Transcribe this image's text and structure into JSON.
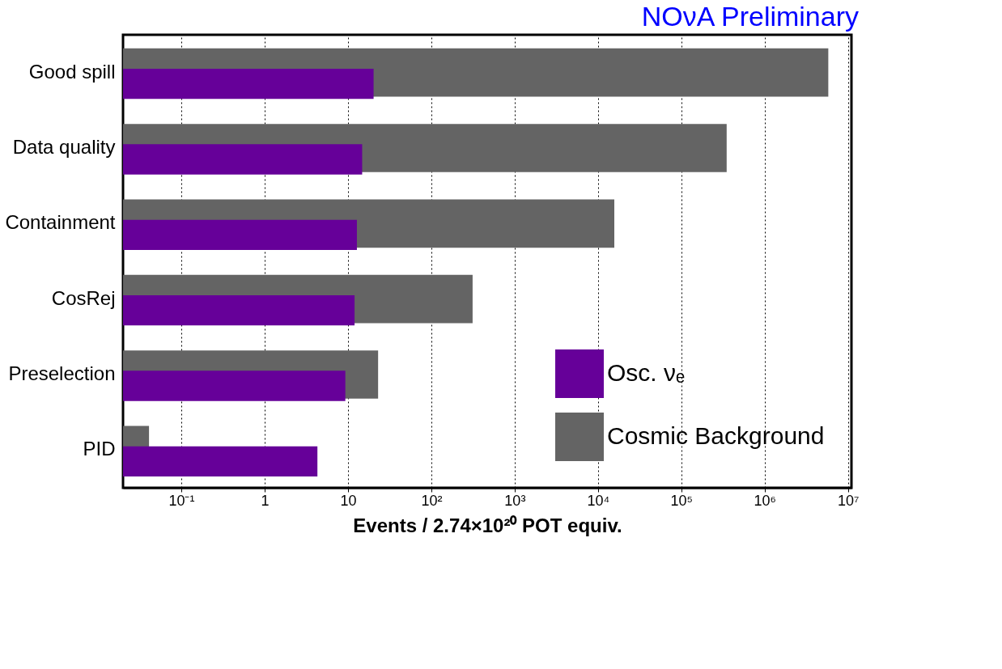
{
  "chart_data": {
    "type": "bar",
    "orientation": "horizontal",
    "log": "x",
    "title": "NOνA Preliminary",
    "xlabel": "Events / 2.74×10²⁰ POT equiv.",
    "categories": [
      "Good spill",
      "Data quality",
      "Containment",
      "CosRej",
      "Preselection",
      "PID"
    ],
    "series": [
      {
        "name": "Osc. νₑ",
        "color": "#660099",
        "values": [
          20.3,
          14.8,
          12.8,
          12.0,
          9.3,
          4.3
        ]
      },
      {
        "name": "Cosmic Background",
        "color": "#646464",
        "values": [
          5800000,
          350000,
          15700,
          313,
          23,
          0.041
        ]
      }
    ],
    "xlim": [
      0.02,
      11000000
    ],
    "xticks": [
      {
        "value": 0.1,
        "label": "10⁻¹"
      },
      1,
      10,
      {
        "value": 100,
        "label": "10²"
      },
      {
        "value": 1000,
        "label": "10³"
      },
      {
        "value": 10000,
        "label": "10⁴"
      },
      {
        "value": 100000,
        "label": "10⁵"
      },
      {
        "value": 1000000,
        "label": "10⁶"
      },
      {
        "value": 10000000,
        "label": "10⁷"
      }
    ],
    "grid": "x",
    "legend": "bottom right"
  }
}
